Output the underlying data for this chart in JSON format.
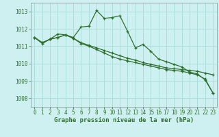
{
  "background_color": "#cff0f0",
  "grid_color": "#aadddd",
  "line_color": "#2d6e2d",
  "xlabel": "Graphe pression niveau de la mer (hPa)",
  "xlim": [
    -0.5,
    23.5
  ],
  "ylim": [
    1007.5,
    1013.5
  ],
  "yticks": [
    1008,
    1009,
    1010,
    1011,
    1012,
    1013
  ],
  "xticks": [
    0,
    1,
    2,
    3,
    4,
    5,
    6,
    7,
    8,
    9,
    10,
    11,
    12,
    13,
    14,
    15,
    16,
    17,
    18,
    19,
    20,
    21,
    22,
    23
  ],
  "series1_x": [
    0,
    1,
    2,
    3,
    4,
    5,
    6,
    7,
    8,
    9,
    10,
    11,
    12,
    13,
    14,
    15,
    16,
    17,
    18,
    19,
    20,
    21,
    22,
    23
  ],
  "series1_y": [
    1011.5,
    1011.2,
    1011.4,
    1011.5,
    1011.65,
    1011.45,
    1011.2,
    1011.05,
    1010.9,
    1010.75,
    1010.6,
    1010.45,
    1010.3,
    1010.2,
    1010.05,
    1009.95,
    1009.85,
    1009.75,
    1009.7,
    1009.65,
    1009.6,
    1009.55,
    1009.45,
    1009.35
  ],
  "series2_x": [
    0,
    1,
    2,
    3,
    4,
    5,
    6,
    7,
    8,
    9,
    10,
    11,
    12,
    13,
    14,
    15,
    16,
    17,
    18,
    19,
    20,
    21,
    22,
    23
  ],
  "series2_y": [
    1011.5,
    1011.2,
    1011.4,
    1011.5,
    1011.65,
    1011.45,
    1011.15,
    1011.0,
    1010.8,
    1010.6,
    1010.4,
    1010.25,
    1010.15,
    1010.05,
    1009.95,
    1009.85,
    1009.75,
    1009.65,
    1009.6,
    1009.55,
    1009.45,
    1009.35,
    1009.1,
    1008.3
  ],
  "series3_x": [
    0,
    1,
    2,
    3,
    4,
    5,
    6,
    7,
    8,
    9,
    10,
    11,
    12,
    13,
    14,
    15,
    16,
    17,
    18,
    19,
    20,
    21,
    22,
    23
  ],
  "series3_y": [
    1011.5,
    1011.15,
    1011.4,
    1011.7,
    1011.65,
    1011.5,
    1012.1,
    1012.15,
    1013.05,
    1012.6,
    1012.65,
    1012.75,
    1011.85,
    1010.9,
    1011.1,
    1010.7,
    1010.25,
    1010.1,
    1009.95,
    1009.8,
    1009.5,
    1009.4,
    1009.05,
    1008.3
  ]
}
